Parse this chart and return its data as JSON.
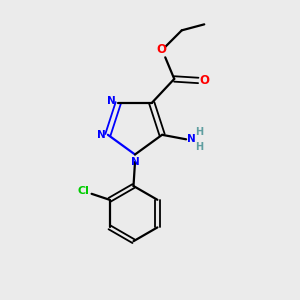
{
  "bg_color": "#ebebeb",
  "bond_color": "#000000",
  "nitrogen_color": "#0000ff",
  "oxygen_color": "#ff0000",
  "chlorine_color": "#00cc00",
  "amino_N_color": "#0000ff",
  "amino_H_color": "#5f9ea0",
  "figsize": [
    3.0,
    3.0
  ],
  "dpi": 100,
  "xlim": [
    0,
    10
  ],
  "ylim": [
    0,
    10
  ]
}
